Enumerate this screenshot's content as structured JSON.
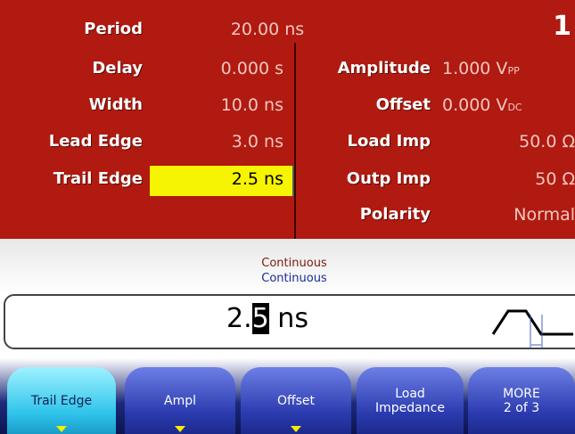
{
  "header": {
    "label": "Period",
    "value": "20.00 ns",
    "channel": "1"
  },
  "left_params": [
    {
      "label": "Delay",
      "value": "0.000 s"
    },
    {
      "label": "Width",
      "value": "10.0 ns"
    },
    {
      "label": "Lead Edge",
      "value": "3.0 ns"
    },
    {
      "label": "Trail Edge",
      "value": "2.5 ns"
    }
  ],
  "right_params": [
    {
      "label": "Amplitude",
      "value": "1.000 V",
      "sub": "PP"
    },
    {
      "label": "Offset",
      "value": "0.000 V",
      "sub": "DC"
    },
    {
      "label": "Load Imp",
      "value": "50.0 Ω"
    },
    {
      "label": "Outp Imp",
      "value": "50 Ω"
    },
    {
      "label": "Polarity",
      "value": "Normal"
    }
  ],
  "status": {
    "line1": "Continuous",
    "line2": "Continuous"
  },
  "entry": {
    "before": "2.",
    "cursor": "5",
    "after": " ns"
  },
  "softkeys": [
    {
      "lines": [
        "Trail Edge"
      ]
    },
    {
      "lines": [
        "Ampl"
      ]
    },
    {
      "lines": [
        "Offset"
      ]
    },
    {
      "lines": [
        "Load",
        "Impedance"
      ]
    },
    {
      "lines": [
        "MORE",
        "2 of 3"
      ]
    }
  ]
}
